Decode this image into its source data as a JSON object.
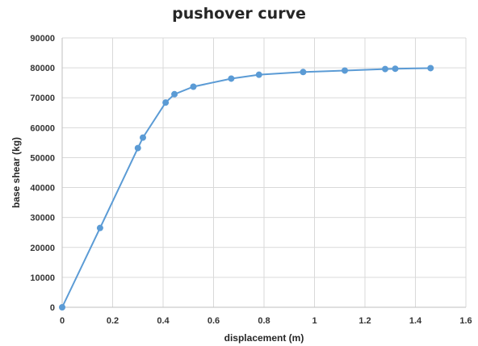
{
  "chart_data": {
    "type": "line",
    "title": "pushover curve",
    "xlabel": "displacement (m)",
    "ylabel": "base shear (kg)",
    "xlim": [
      0,
      1.6
    ],
    "ylim": [
      0,
      90000
    ],
    "x_ticks": [
      0,
      0.2,
      0.4,
      0.6,
      0.8,
      1,
      1.2,
      1.4,
      1.6
    ],
    "y_ticks": [
      0,
      10000,
      20000,
      30000,
      40000,
      50000,
      60000,
      70000,
      80000,
      90000
    ],
    "grid": true,
    "legend": "none",
    "series": [
      {
        "color": "#5b9bd5",
        "marker": "circle",
        "points": [
          {
            "x": 0,
            "y": 0
          },
          {
            "x": 0.15,
            "y": 26500
          },
          {
            "x": 0.3,
            "y": 53200
          },
          {
            "x": 0.32,
            "y": 56700
          },
          {
            "x": 0.41,
            "y": 68400
          },
          {
            "x": 0.445,
            "y": 71200
          },
          {
            "x": 0.52,
            "y": 73700
          },
          {
            "x": 0.67,
            "y": 76400
          },
          {
            "x": 0.78,
            "y": 77700
          },
          {
            "x": 0.955,
            "y": 78600
          },
          {
            "x": 1.12,
            "y": 79100
          },
          {
            "x": 1.28,
            "y": 79600
          },
          {
            "x": 1.32,
            "y": 79700
          },
          {
            "x": 1.46,
            "y": 79900
          }
        ]
      }
    ]
  },
  "colors": {
    "grid": "#d9d9d9",
    "axis": "#bfbfbf",
    "text": "#262626"
  }
}
